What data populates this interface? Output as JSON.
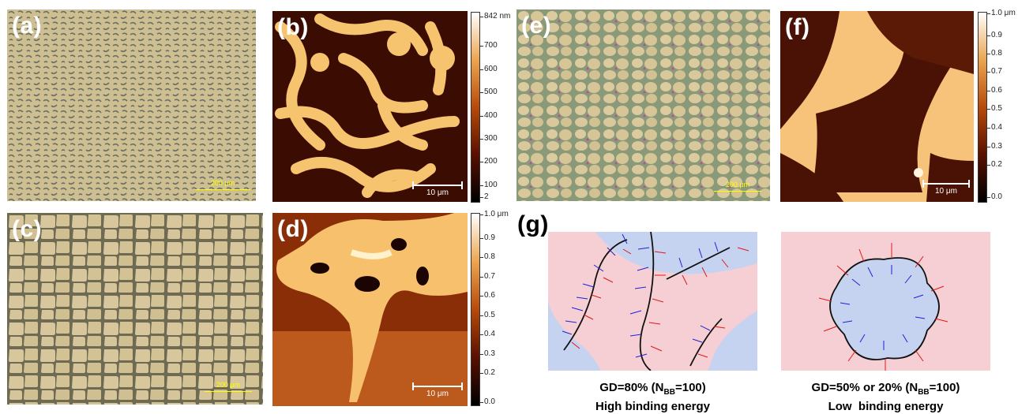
{
  "panels": {
    "a": {
      "label": "(a)",
      "scale": "200 μm"
    },
    "b": {
      "label": "(b)",
      "scale": "10 μm",
      "colorbar": [
        "842 nm",
        "700",
        "600",
        "500",
        "400",
        "300",
        "200",
        "100",
        "2"
      ]
    },
    "c": {
      "label": "(c)",
      "scale": "200 μm"
    },
    "d": {
      "label": "(d)",
      "scale": "10 μm",
      "colorbar": [
        "1.0 μm",
        "0.9",
        "0.8",
        "0.7",
        "0.6",
        "0.5",
        "0.4",
        "0.3",
        "0.2",
        "0.0"
      ]
    },
    "e": {
      "label": "(e)",
      "scale": "200 μm"
    },
    "f": {
      "label": "(f)",
      "scale": "10 μm",
      "colorbar": [
        "1.0 μm",
        "0.9",
        "0.8",
        "0.7",
        "0.6",
        "0.5",
        "0.4",
        "0.3",
        "0.2",
        "0.0"
      ]
    },
    "g": {
      "label": "(g)",
      "left_caption_line1_a": "GD=80% (N",
      "left_caption_sub": "BB",
      "left_caption_line1_b": "=100)",
      "left_caption_line2": "High binding energy",
      "right_caption_line1_a": "GD=50% or 20% (N",
      "right_caption_sub": "BB",
      "right_caption_line1_b": "=100)",
      "right_caption_line2": "Low  binding energy"
    }
  },
  "colors": {
    "optical_bg": "#c9b98a",
    "afm_dark": "#3a0c02",
    "afm_bright": "#ffe9b0",
    "blue_domain": "#c6d3f0",
    "pink_domain": "#f5cfd3",
    "chain_blue": "#1a22d8",
    "chain_red": "#e01818"
  }
}
